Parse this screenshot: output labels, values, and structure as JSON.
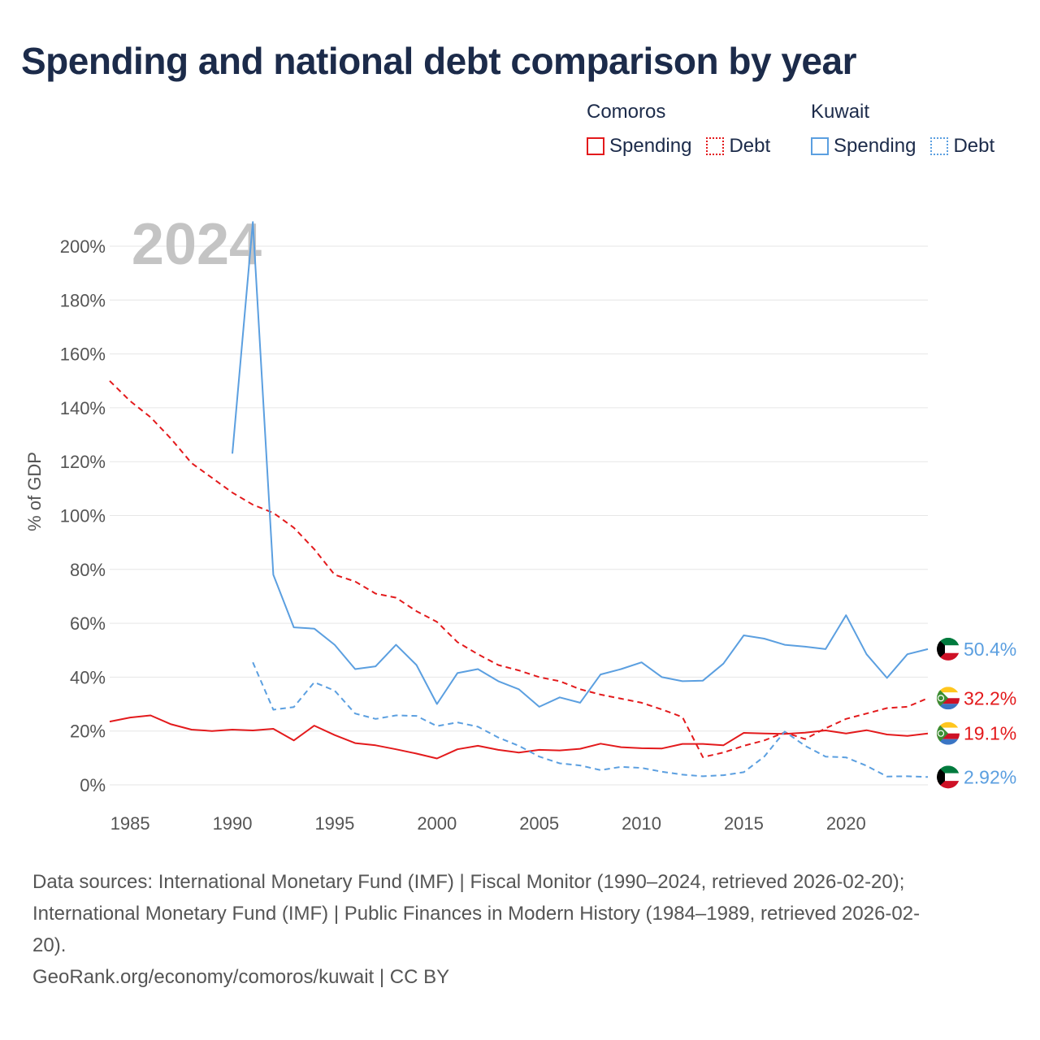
{
  "title": "Spending and national debt comparison by year",
  "legend": {
    "groups": [
      {
        "country": "Comoros",
        "items": [
          {
            "label": "Spending",
            "style": "solid",
            "color": "#e31a1c"
          },
          {
            "label": "Debt",
            "style": "dotted",
            "color": "#e31a1c"
          }
        ]
      },
      {
        "country": "Kuwait",
        "items": [
          {
            "label": "Spending",
            "style": "solid",
            "color": "#5b9fe0"
          },
          {
            "label": "Debt",
            "style": "dotted",
            "color": "#5b9fe0"
          }
        ]
      }
    ]
  },
  "colors": {
    "comoros": "#e31a1c",
    "kuwait": "#5b9fe0",
    "grid": "#e6e6e6",
    "axis_text": "#555555",
    "year_watermark": "#c4c4c4"
  },
  "chart_data": {
    "type": "line",
    "title": "Spending and national debt comparison by year",
    "year_label": "2024",
    "xlabel": "",
    "ylabel": "% of GDP",
    "xlim": [
      1984,
      2024
    ],
    "ylim": [
      0,
      200
    ],
    "x_ticks": [
      1985,
      1990,
      1995,
      2000,
      2005,
      2010,
      2015,
      2020
    ],
    "y_ticks": [
      0,
      20,
      40,
      60,
      80,
      100,
      120,
      140,
      160,
      180,
      200
    ],
    "y_tick_labels": [
      "0%",
      "20%",
      "40%",
      "60%",
      "80%",
      "100%",
      "120%",
      "140%",
      "160%",
      "180%",
      "200%"
    ],
    "series": [
      {
        "name": "Comoros Spending",
        "country": "Comoros",
        "style": "solid",
        "color": "#e31a1c",
        "end_label": "19.1%",
        "flag": "comoros",
        "x": [
          1984,
          1985,
          1986,
          1987,
          1988,
          1989,
          1990,
          1991,
          1992,
          1993,
          1994,
          1995,
          1996,
          1997,
          1998,
          1999,
          2000,
          2001,
          2002,
          2003,
          2004,
          2005,
          2006,
          2007,
          2008,
          2009,
          2010,
          2011,
          2012,
          2013,
          2014,
          2015,
          2016,
          2017,
          2018,
          2019,
          2020,
          2021,
          2022,
          2023,
          2024
        ],
        "values": [
          23.5,
          25,
          25.8,
          22.5,
          20.5,
          20,
          20.5,
          20.2,
          20.8,
          16.5,
          22,
          18.5,
          15.5,
          14.7,
          13.2,
          11.6,
          9.8,
          13.2,
          14.5,
          13,
          12,
          13,
          12.8,
          13.4,
          15.3,
          14,
          13.6,
          13.5,
          15.2,
          15.2,
          14.7,
          19.3,
          19.1,
          18.9,
          19.4,
          20.2,
          19.1,
          20.3,
          18.7,
          18.2,
          19.1
        ]
      },
      {
        "name": "Comoros Debt",
        "country": "Comoros",
        "style": "dashed",
        "color": "#e31a1c",
        "end_label": "32.2%",
        "flag": "comoros",
        "x": [
          1984,
          1985,
          1986,
          1987,
          1988,
          1989,
          1990,
          1991,
          1992,
          1993,
          1994,
          1995,
          1996,
          1997,
          1998,
          1999,
          2000,
          2001,
          2002,
          2003,
          2004,
          2005,
          2006,
          2007,
          2008,
          2009,
          2010,
          2011,
          2012,
          2013,
          2014,
          2015,
          2016,
          2017,
          2018,
          2019,
          2020,
          2021,
          2022,
          2023,
          2024
        ],
        "values": [
          150,
          142.5,
          136.5,
          128.5,
          119.5,
          114,
          108.5,
          104,
          101,
          95.5,
          87.5,
          78,
          75.5,
          71,
          69.5,
          64.5,
          60.5,
          53,
          48.5,
          44.5,
          42.5,
          40,
          38.5,
          35.5,
          33.5,
          32,
          30.5,
          28,
          25.2,
          10.3,
          12,
          14.5,
          16.5,
          19.5,
          17,
          21,
          24.5,
          26.5,
          28.5,
          29,
          32.2
        ]
      },
      {
        "name": "Kuwait Spending",
        "country": "Kuwait",
        "style": "solid",
        "color": "#5b9fe0",
        "end_label": "50.4%",
        "flag": "kuwait",
        "x": [
          1990,
          1991,
          1992,
          1993,
          1994,
          1995,
          1996,
          1997,
          1998,
          1999,
          2000,
          2001,
          2002,
          2003,
          2004,
          2005,
          2006,
          2007,
          2008,
          2009,
          2010,
          2011,
          2012,
          2013,
          2014,
          2015,
          2016,
          2017,
          2018,
          2019,
          2020,
          2021,
          2022,
          2023,
          2024
        ],
        "values": [
          123,
          209,
          78,
          58.5,
          58,
          52,
          43,
          44,
          52,
          44.5,
          30,
          41.5,
          43,
          38.5,
          35.5,
          29,
          32.5,
          30.5,
          41,
          43,
          45.5,
          40,
          38.5,
          38.7,
          45,
          55.5,
          54.3,
          52,
          51.3,
          50.4,
          63,
          48.5,
          39.7,
          48.5,
          50.4
        ]
      },
      {
        "name": "Kuwait Debt",
        "country": "Kuwait",
        "style": "dashed",
        "color": "#5b9fe0",
        "end_label": "2.92%",
        "flag": "kuwait",
        "x": [
          1991,
          1992,
          1993,
          1994,
          1995,
          1996,
          1997,
          1998,
          1999,
          2000,
          2001,
          2002,
          2003,
          2004,
          2005,
          2006,
          2007,
          2008,
          2009,
          2010,
          2011,
          2012,
          2013,
          2014,
          2015,
          2016,
          2017,
          2018,
          2019,
          2020,
          2021,
          2022,
          2023,
          2024
        ],
        "values": [
          45.5,
          27.9,
          28.9,
          38.1,
          35,
          26.5,
          24.5,
          25.8,
          25.6,
          21.8,
          23.2,
          21.6,
          17.6,
          14.5,
          10.5,
          8,
          7.2,
          5.5,
          6.7,
          6.3,
          4.9,
          3.8,
          3.2,
          3.6,
          4.7,
          10.5,
          19.8,
          14.5,
          10.5,
          10.2,
          7.1,
          3.1,
          3.2,
          2.92
        ]
      }
    ]
  },
  "footer": {
    "sources_line1": "Data sources: International Monetary Fund (IMF) | Fiscal Monitor (1990–2024, retrieved 2026-02-20);",
    "sources_line2": "International Monetary Fund (IMF) | Public Finances in Modern History (1984–1989, retrieved 2026-02-",
    "sources_line3": "20).",
    "attribution": "GeoRank.org/economy/comoros/kuwait | CC BY"
  }
}
